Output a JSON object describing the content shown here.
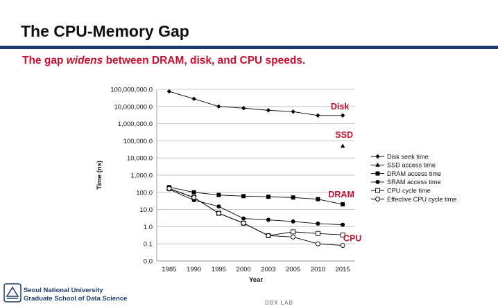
{
  "slide": {
    "title": "The CPU-Memory Gap",
    "subtitle_parts": [
      "The gap ",
      "widens",
      " between DRAM, disk, and CPU speeds."
    ]
  },
  "footer": {
    "university": "Seoul National University",
    "school": "Graduate School of Data Science",
    "lab": "DBX LAB"
  },
  "colors": {
    "accent_red": "#c8102e",
    "title_rule": "#1c3a6e",
    "series": "#000000",
    "grid": "#bbbbbb"
  },
  "chart_data": {
    "type": "line",
    "title": "",
    "xlabel": "Year",
    "ylabel": "Time (ns)",
    "y_scale": "log",
    "ylim": [
      0.01,
      100000000
    ],
    "grid": true,
    "legend_position": "right",
    "categories": [
      "1985",
      "1990",
      "1995",
      "2000",
      "2003",
      "2005",
      "2010",
      "2015"
    ],
    "y_tick_labels": [
      "0.0",
      "0.1",
      "1.0",
      "10.0",
      "100.0",
      "1,000.0",
      "10,000.0",
      "100,000.0",
      "1,000,000.0",
      "10,000,000.0",
      "100,000,000.0"
    ],
    "y_tick_values": [
      0.01,
      0.1,
      1,
      10,
      100,
      1000,
      10000,
      100000,
      1000000,
      10000000,
      100000000
    ],
    "series": [
      {
        "name": "Disk seek time",
        "marker": "diamond",
        "values": [
          75000000,
          28000000,
          10000000,
          8000000,
          6000000,
          5000000,
          3000000,
          3000000
        ]
      },
      {
        "name": "SSD access time",
        "marker": "triangle",
        "values": [
          null,
          null,
          null,
          null,
          null,
          null,
          null,
          50000
        ]
      },
      {
        "name": "DRAM access time",
        "marker": "square",
        "values": [
          200,
          100,
          70,
          60,
          55,
          50,
          40,
          20
        ]
      },
      {
        "name": "SRAM access time",
        "marker": "circle",
        "values": [
          150,
          35,
          15,
          3,
          2.5,
          2,
          1.5,
          1.3
        ]
      },
      {
        "name": "CPU cycle time",
        "marker": "square-open",
        "values": [
          166,
          50,
          6,
          1.6,
          0.3,
          0.5,
          0.4,
          0.33
        ]
      },
      {
        "name": "Effective CPU cycle time",
        "marker": "circle-open",
        "values": [
          166,
          50,
          6,
          1.6,
          0.3,
          0.25,
          0.1,
          0.08
        ]
      }
    ],
    "annotations": [
      {
        "text": "Disk",
        "x": "2015",
        "y": 3000000
      },
      {
        "text": "SSD",
        "x": "2015",
        "y": 50000
      },
      {
        "text": "DRAM",
        "x": "2015",
        "y": 20
      },
      {
        "text": "CPU",
        "x": "2015",
        "y": 0.08
      }
    ]
  }
}
